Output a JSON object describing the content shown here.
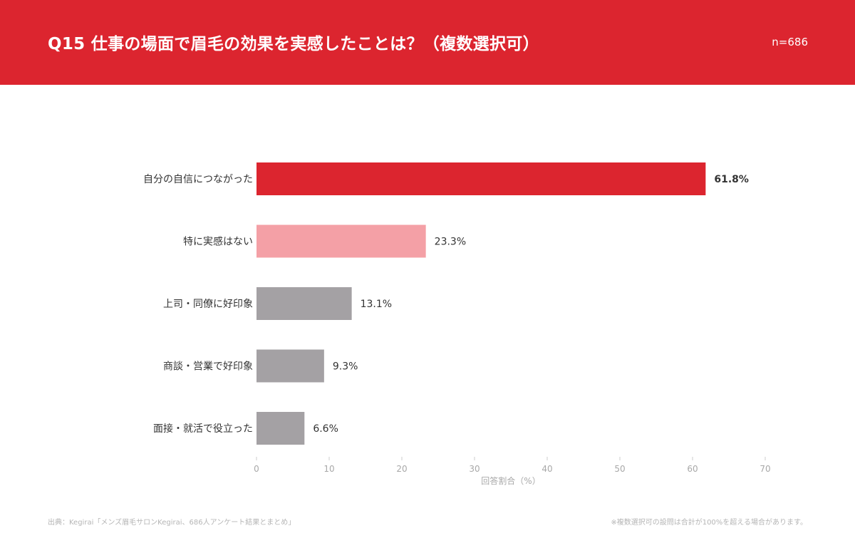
{
  "header": {
    "title": "Q15  仕事の場面で眉毛の効果を実感したことは？（複数選択可）",
    "sample_size": "n=686"
  },
  "colors": {
    "header_bg": "#dc252f",
    "highlight": "#dc252f",
    "secondary": "#f4a0a6",
    "neutral": "#a4a1a4",
    "axis_text": "#a8a8a8"
  },
  "chart_data": {
    "type": "bar",
    "orientation": "horizontal",
    "title": "",
    "categories": [
      "自分の自信につながった",
      "特に実感はない",
      "上司・同僚に好印象",
      "商談・営業で好印象",
      "面接・就活で役立った"
    ],
    "values": [
      61.8,
      23.3,
      13.1,
      9.3,
      6.6
    ],
    "value_labels": [
      "61.8%",
      "23.3%",
      "13.1%",
      "9.3%",
      "6.6%"
    ],
    "xlabel": "回答割合（%）",
    "ylabel": "",
    "xlim": [
      0,
      70
    ],
    "xticks": [
      0,
      10,
      20,
      30,
      40,
      50,
      60,
      70
    ],
    "grid": false,
    "legend": "none"
  },
  "footer": {
    "source": "出典：Kegirai「メンズ眉毛サロンKegirai、686人アンケート結果とまとめ」",
    "note": "※複数選択可の設問は合計が100%を超える場合があります。"
  }
}
